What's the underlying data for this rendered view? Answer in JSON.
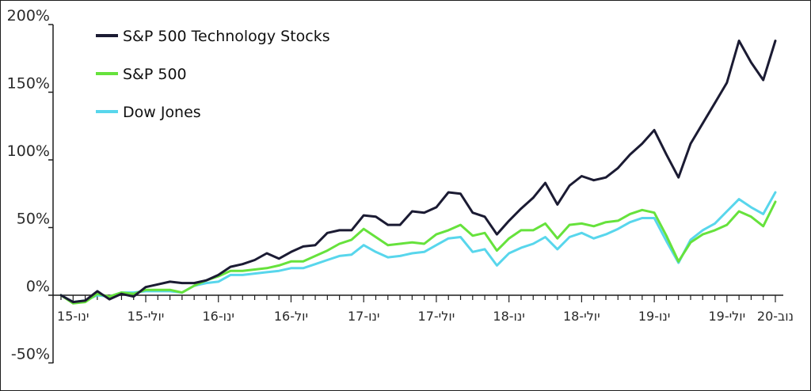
{
  "chart_data": {
    "type": "line",
    "title": "",
    "xlabel": "",
    "ylabel": "",
    "ylim": [
      -50,
      200
    ],
    "yticks": [
      {
        "value": 200,
        "label": "200%"
      },
      {
        "value": 150,
        "label": "150%"
      },
      {
        "value": 100,
        "label": "100%"
      },
      {
        "value": 50,
        "label": "50%"
      },
      {
        "value": 0,
        "label": "0%"
      },
      {
        "value": -50,
        "label": "-50%"
      }
    ],
    "xticks": [
      {
        "index": 1,
        "label": "ינו-15"
      },
      {
        "index": 7,
        "label": "יולי-15"
      },
      {
        "index": 13,
        "label": "ינו-16"
      },
      {
        "index": 19,
        "label": "יול-16"
      },
      {
        "index": 25,
        "label": "ינו-17"
      },
      {
        "index": 31,
        "label": "יולי-17"
      },
      {
        "index": 37,
        "label": "ינו-18"
      },
      {
        "index": 43,
        "label": "יולי-18"
      },
      {
        "index": 49,
        "label": "ינו-19"
      },
      {
        "index": 55,
        "label": "יולי-19"
      },
      {
        "index": 59,
        "label": "נוב-20"
      }
    ],
    "grid": false,
    "legend": "top-left",
    "series": [
      {
        "name": "S&P 500 Technology Stocks",
        "color": "#1b1b33",
        "values": [
          0,
          -5,
          -4,
          3,
          -3,
          1,
          -1,
          6,
          8,
          10,
          9,
          9,
          11,
          15,
          21,
          23,
          26,
          31,
          27,
          32,
          36,
          37,
          46,
          48,
          48,
          59,
          58,
          52,
          52,
          62,
          61,
          65,
          76,
          75,
          61,
          58,
          45,
          55,
          64,
          72,
          83,
          67,
          81,
          88,
          85,
          87,
          94,
          104,
          112,
          122,
          104,
          87,
          112,
          127,
          142,
          157,
          188,
          172,
          159,
          188
        ]
      },
      {
        "name": "S&P 500",
        "color": "#66e23c",
        "values": [
          0,
          -6,
          -5,
          1,
          -1,
          2,
          1,
          4,
          4,
          4,
          2,
          7,
          11,
          14,
          18,
          18,
          19,
          20,
          22,
          25,
          25,
          29,
          33,
          38,
          41,
          49,
          43,
          37,
          38,
          39,
          38,
          45,
          48,
          52,
          44,
          46,
          33,
          42,
          48,
          48,
          53,
          42,
          52,
          53,
          51,
          54,
          55,
          60,
          63,
          61,
          44,
          25,
          39,
          45,
          48,
          52,
          62,
          58,
          51,
          69
        ]
      },
      {
        "name": "Dow Jones",
        "color": "#58d6ec",
        "values": [
          0,
          -5,
          -4,
          0,
          -1,
          2,
          2,
          3,
          3,
          3,
          2,
          7,
          9,
          10,
          15,
          15,
          16,
          17,
          18,
          20,
          20,
          23,
          26,
          29,
          30,
          37,
          32,
          28,
          29,
          31,
          32,
          37,
          42,
          43,
          32,
          34,
          22,
          31,
          35,
          38,
          43,
          34,
          43,
          46,
          42,
          45,
          49,
          54,
          57,
          57,
          40,
          24,
          41,
          48,
          53,
          62,
          71,
          65,
          60,
          76
        ]
      }
    ]
  }
}
